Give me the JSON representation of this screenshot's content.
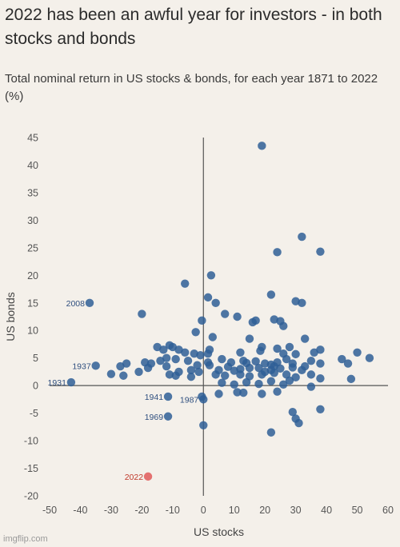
{
  "title": "2022 has been an awful year for investors - in both stocks and bonds",
  "subtitle": "Total nominal return in US stocks & bonds, for each year 1871 to 2022 (%)",
  "watermark": "imgflip.com",
  "colors": {
    "point": "#2f5f96",
    "highlight": "#e05a5a",
    "background": "#f4f0ea",
    "axis": "#555555"
  },
  "chart_data": {
    "type": "scatter",
    "xlabel": "US stocks",
    "ylabel": "US bonds",
    "xlim": [
      -50,
      60
    ],
    "ylim": [
      -20,
      45
    ],
    "xticks": [
      -50,
      -40,
      -30,
      -20,
      -10,
      0,
      10,
      20,
      30,
      40,
      50,
      60
    ],
    "yticks": [
      -20,
      -15,
      -10,
      -5,
      0,
      5,
      10,
      15,
      20,
      25,
      30,
      35,
      40,
      45
    ],
    "grid": false,
    "labeled_points": [
      {
        "label": "2008",
        "x": -37,
        "y": 15
      },
      {
        "label": "1937",
        "x": -35,
        "y": 3.6
      },
      {
        "label": "1931",
        "x": -43,
        "y": 0.6
      },
      {
        "label": "1941",
        "x": -11.5,
        "y": -2
      },
      {
        "label": "1987",
        "x": 0,
        "y": -2.5
      },
      {
        "label": "1969",
        "x": -11.5,
        "y": -5.6
      },
      {
        "label": "2022",
        "x": -18,
        "y": -16.5,
        "highlight": true
      }
    ],
    "points": [
      [
        19,
        43.5
      ],
      [
        32,
        27
      ],
      [
        24,
        24.2
      ],
      [
        38,
        24.3
      ],
      [
        2.5,
        20
      ],
      [
        -6,
        18.5
      ],
      [
        22,
        16.5
      ],
      [
        1.5,
        16
      ],
      [
        4,
        15
      ],
      [
        30,
        15.3
      ],
      [
        32,
        15
      ],
      [
        -20,
        13
      ],
      [
        7,
        13
      ],
      [
        11,
        12.5
      ],
      [
        16,
        11.5
      ],
      [
        17,
        11.8
      ],
      [
        23,
        12
      ],
      [
        -0.5,
        11.8
      ],
      [
        25,
        11.7
      ],
      [
        26,
        10.8
      ],
      [
        -2.5,
        9.7
      ],
      [
        3,
        8.8
      ],
      [
        15,
        8.5
      ],
      [
        33,
        8.5
      ],
      [
        19,
        7
      ],
      [
        28,
        7
      ],
      [
        -15,
        7
      ],
      [
        -13,
        6.5
      ],
      [
        -10,
        7
      ],
      [
        -11,
        7.3
      ],
      [
        -8,
        6.5
      ],
      [
        -6,
        6
      ],
      [
        -3,
        5.8
      ],
      [
        -1,
        5.5
      ],
      [
        1.5,
        5.8
      ],
      [
        2,
        6.5
      ],
      [
        12,
        6
      ],
      [
        18.5,
        6.3
      ],
      [
        24,
        6.7
      ],
      [
        26,
        5.8
      ],
      [
        30,
        5.7
      ],
      [
        36,
        6
      ],
      [
        38,
        6.5
      ],
      [
        45,
        4.8
      ],
      [
        47,
        4
      ],
      [
        50,
        6
      ],
      [
        54,
        5
      ],
      [
        -19,
        4.2
      ],
      [
        -17,
        4
      ],
      [
        -14,
        4.5
      ],
      [
        -12,
        5
      ],
      [
        -9,
        4.8
      ],
      [
        -5,
        4.5
      ],
      [
        -2,
        3.7
      ],
      [
        1.5,
        4.2
      ],
      [
        6,
        4.8
      ],
      [
        9,
        4.2
      ],
      [
        13,
        4.5
      ],
      [
        14,
        4.1
      ],
      [
        17,
        4.4
      ],
      [
        20,
        4
      ],
      [
        22,
        3.8
      ],
      [
        23,
        3.5
      ],
      [
        24,
        4.2
      ],
      [
        27,
        4.8
      ],
      [
        29,
        4
      ],
      [
        33,
        3.5
      ],
      [
        35,
        4.5
      ],
      [
        38,
        4
      ],
      [
        -27,
        3.5
      ],
      [
        -25,
        4
      ],
      [
        -18,
        3.2
      ],
      [
        -12,
        3.5
      ],
      [
        -8,
        2.5
      ],
      [
        -4,
        2.8
      ],
      [
        -1.5,
        2.5
      ],
      [
        2,
        3.7
      ],
      [
        5,
        2.8
      ],
      [
        8,
        3.4
      ],
      [
        10,
        2.7
      ],
      [
        12,
        3
      ],
      [
        15,
        3.2
      ],
      [
        18,
        3.2
      ],
      [
        20,
        2.5
      ],
      [
        22,
        2.8
      ],
      [
        25,
        3.1
      ],
      [
        29,
        3.3
      ],
      [
        32,
        2.8
      ],
      [
        -30,
        2.1
      ],
      [
        -26,
        1.8
      ],
      [
        -21,
        2.5
      ],
      [
        -11,
        2
      ],
      [
        -9,
        1.8
      ],
      [
        -4,
        1.6
      ],
      [
        4,
        2
      ],
      [
        7,
        1.8
      ],
      [
        12,
        2
      ],
      [
        15,
        1.7
      ],
      [
        19,
        2
      ],
      [
        23,
        2.3
      ],
      [
        27,
        2
      ],
      [
        30,
        1.5
      ],
      [
        35,
        2
      ],
      [
        38,
        1.3
      ],
      [
        48,
        1.2
      ],
      [
        6,
        0.5
      ],
      [
        10,
        0.2
      ],
      [
        14,
        0.6
      ],
      [
        18,
        0.3
      ],
      [
        22,
        0.8
      ],
      [
        26,
        0.2
      ],
      [
        28,
        0.9
      ],
      [
        35,
        -0.2
      ],
      [
        -0.5,
        -2
      ],
      [
        5,
        -1.5
      ],
      [
        11,
        -1.2
      ],
      [
        13,
        -1.3
      ],
      [
        19,
        -1.5
      ],
      [
        24,
        -1.1
      ],
      [
        38,
        -4.3
      ],
      [
        29,
        -4.8
      ],
      [
        30,
        -6
      ],
      [
        31,
        -6.8
      ],
      [
        0,
        -7.2
      ],
      [
        22,
        -8.5
      ]
    ]
  }
}
